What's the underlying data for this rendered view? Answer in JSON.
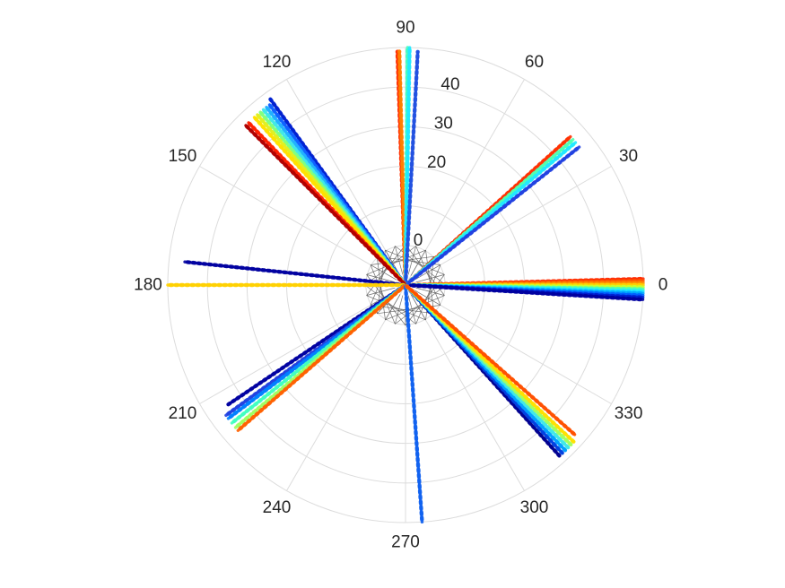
{
  "chart_data": {
    "type": "scatter",
    "projection": "polar",
    "title": "",
    "theta_unit": "degrees",
    "theta_ticks": [
      0,
      30,
      60,
      90,
      120,
      150,
      180,
      210,
      240,
      270,
      300,
      330
    ],
    "theta_tick_labels": [
      "0",
      "30",
      "60",
      "90",
      "120",
      "150",
      "180",
      "210",
      "240",
      "270",
      "300",
      "330"
    ],
    "r_ticks": [
      0,
      20,
      30,
      40
    ],
    "r_tick_labels": [
      "0",
      "20",
      "30",
      "40"
    ],
    "r_lim": [
      -10,
      50
    ],
    "grid": true,
    "colormap": "jet",
    "rays": [
      {
        "theta": 1.5,
        "r_max": 50,
        "color": "#ff2a00"
      },
      {
        "theta": 1.0,
        "r_max": 50,
        "color": "#ff5a00"
      },
      {
        "theta": 0.5,
        "r_max": 50,
        "color": "#ff8c00"
      },
      {
        "theta": 0.0,
        "r_max": 50,
        "color": "#ffd000"
      },
      {
        "theta": -0.5,
        "r_max": 50,
        "color": "#c8ff30"
      },
      {
        "theta": -1.0,
        "r_max": 50,
        "color": "#50ffb0"
      },
      {
        "theta": -1.5,
        "r_max": 50,
        "color": "#20e8ff"
      },
      {
        "theta": -2.0,
        "r_max": 50,
        "color": "#00a8ff"
      },
      {
        "theta": -2.5,
        "r_max": 50,
        "color": "#0060ff"
      },
      {
        "theta": -3.0,
        "r_max": 50,
        "color": "#0020d0"
      },
      {
        "theta": -3.5,
        "r_max": 50,
        "color": "#0000a0"
      },
      {
        "theta": 42.0,
        "r_max": 46,
        "color": "#ff3000"
      },
      {
        "theta": 41.0,
        "r_max": 46,
        "color": "#50ffb0"
      },
      {
        "theta": 40.0,
        "r_max": 46,
        "color": "#20e8ff"
      },
      {
        "theta": 38.5,
        "r_max": 46,
        "color": "#2040e0"
      },
      {
        "theta": 92.0,
        "r_max": 49,
        "color": "#ff3000"
      },
      {
        "theta": 91.5,
        "r_max": 49,
        "color": "#ff8000"
      },
      {
        "theta": 89.5,
        "r_max": 50,
        "color": "#40ffc0"
      },
      {
        "theta": 89.0,
        "r_max": 50,
        "color": "#20e8ff"
      },
      {
        "theta": 87.0,
        "r_max": 49,
        "color": "#2050e0"
      },
      {
        "theta": 126.0,
        "r_max": 48,
        "color": "#0020d0"
      },
      {
        "theta": 127.0,
        "r_max": 47,
        "color": "#1060ff"
      },
      {
        "theta": 128.0,
        "r_max": 47,
        "color": "#20b0ff"
      },
      {
        "theta": 129.0,
        "r_max": 47,
        "color": "#40e8e8"
      },
      {
        "theta": 130.0,
        "r_max": 47,
        "color": "#80ff80"
      },
      {
        "theta": 131.0,
        "r_max": 47,
        "color": "#e0f020"
      },
      {
        "theta": 132.0,
        "r_max": 47,
        "color": "#ffe000"
      },
      {
        "theta": 134.0,
        "r_max": 47,
        "color": "#ff2000"
      },
      {
        "theta": 135.0,
        "r_max": 47,
        "color": "#b00000"
      },
      {
        "theta": 174.0,
        "r_max": 46,
        "color": "#0000a0"
      },
      {
        "theta": 180.0,
        "r_max": 50,
        "color": "#ffd000"
      },
      {
        "theta": 214.0,
        "r_max": 44,
        "color": "#0000a0"
      },
      {
        "theta": 216.0,
        "r_max": 46,
        "color": "#2040e0"
      },
      {
        "theta": 217.0,
        "r_max": 46,
        "color": "#0080ff"
      },
      {
        "theta": 218.5,
        "r_max": 46,
        "color": "#40ffc0"
      },
      {
        "theta": 220.0,
        "r_max": 46,
        "color": "#a0ff60"
      },
      {
        "theta": 221.0,
        "r_max": 46,
        "color": "#ff6000"
      },
      {
        "theta": 274.0,
        "r_max": 50,
        "color": "#1060f0"
      },
      {
        "theta": 312.0,
        "r_max": 48,
        "color": "#000090"
      },
      {
        "theta": 313.0,
        "r_max": 48,
        "color": "#0040e0"
      },
      {
        "theta": 314.0,
        "r_max": 48,
        "color": "#00a0ff"
      },
      {
        "theta": 315.0,
        "r_max": 48,
        "color": "#40e8e8"
      },
      {
        "theta": 316.0,
        "r_max": 48,
        "color": "#a0ff60"
      },
      {
        "theta": 317.0,
        "r_max": 48,
        "color": "#ffe000"
      },
      {
        "theta": 318.5,
        "r_max": 47,
        "color": "#ff5000"
      }
    ]
  }
}
